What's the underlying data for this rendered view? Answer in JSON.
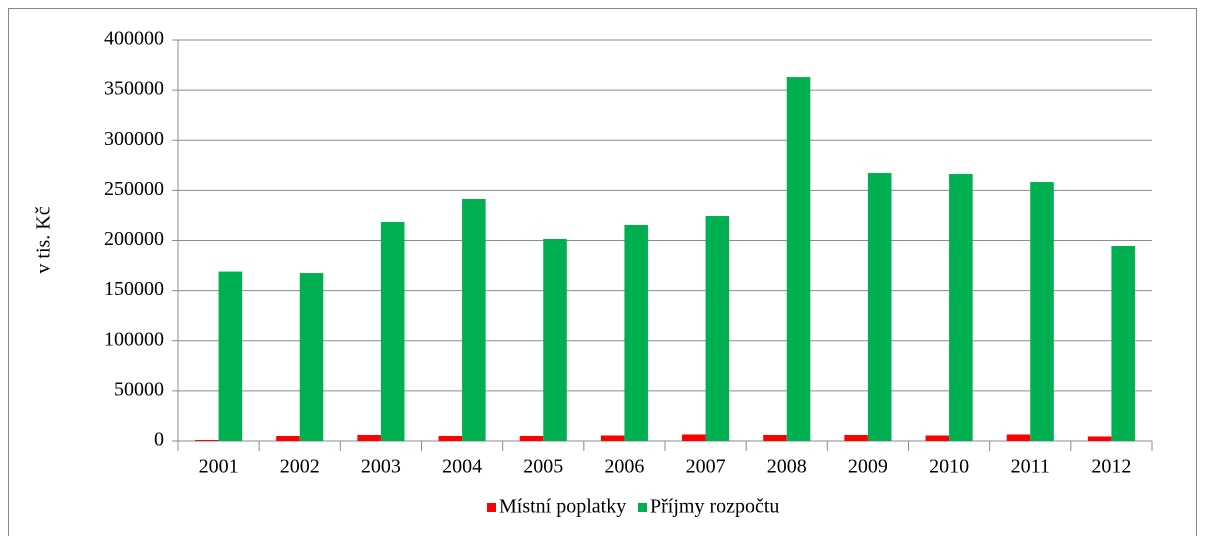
{
  "chart_data": {
    "type": "bar",
    "y_label": "v tis. Kč",
    "categories": [
      "2001",
      "2002",
      "2003",
      "2004",
      "2005",
      "2006",
      "2007",
      "2008",
      "2009",
      "2010",
      "2011",
      "2012"
    ],
    "series": [
      {
        "name": "Místní poplatky",
        "color": "#ff0000",
        "values": [
          1000,
          5000,
          6000,
          5000,
          5000,
          5500,
          6500,
          6000,
          6000,
          5500,
          6500,
          4500
        ]
      },
      {
        "name": "Příjmy rozpočtu",
        "color": "#00b050",
        "values": [
          169000,
          167500,
          218500,
          241400,
          201500,
          215500,
          224400,
          363000,
          267300,
          266300,
          258300,
          194500
        ]
      }
    ],
    "ylim": [
      0,
      400000
    ],
    "yticks": [
      0,
      50000,
      100000,
      150000,
      200000,
      250000,
      300000,
      350000,
      400000
    ],
    "grid": true,
    "legend": "bottom"
  }
}
